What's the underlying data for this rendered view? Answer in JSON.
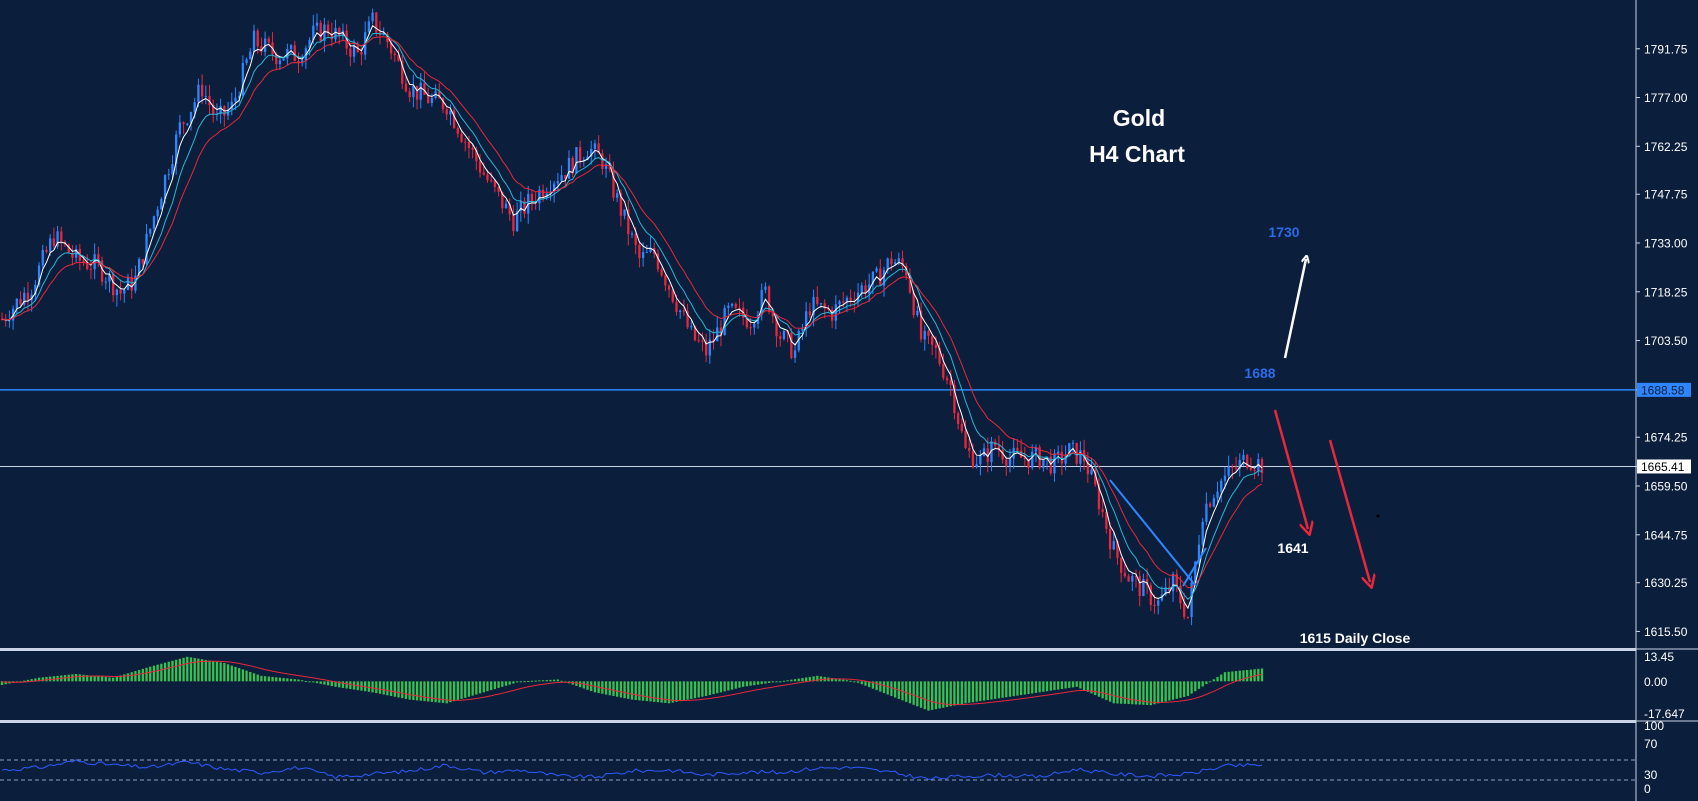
{
  "chart_data": [
    {
      "type": "candlestick",
      "title": "Gold",
      "subtitle": "H4 Chart",
      "y_ticks": [
        1791.75,
        1777.0,
        1762.25,
        1747.75,
        1733.0,
        1718.25,
        1703.5,
        1688.58,
        1674.25,
        1665.41,
        1659.5,
        1644.75,
        1630.25,
        1615.5
      ],
      "y_tick_labels": [
        "1791.75",
        "1777.00",
        "1762.25",
        "1747.75",
        "1733.00",
        "1718.25",
        "1703.50",
        "1688.58",
        "1674.25",
        "1665.41",
        "1659.50",
        "1644.75",
        "1630.25",
        "1615.50"
      ],
      "ylim": [
        1610.5,
        1806.5
      ],
      "price_path": [
        [
          0,
          1710
        ],
        [
          8,
          1720
        ],
        [
          14,
          1735
        ],
        [
          20,
          1728
        ],
        [
          26,
          1726
        ],
        [
          32,
          1718
        ],
        [
          36,
          1722
        ],
        [
          42,
          1745
        ],
        [
          48,
          1768
        ],
        [
          54,
          1780
        ],
        [
          58,
          1770
        ],
        [
          62,
          1774
        ],
        [
          68,
          1794
        ],
        [
          74,
          1790
        ],
        [
          80,
          1790
        ],
        [
          84,
          1796
        ],
        [
          88,
          1798
        ],
        [
          92,
          1794
        ],
        [
          96,
          1790
        ],
        [
          100,
          1800
        ],
        [
          104,
          1794
        ],
        [
          110,
          1780
        ],
        [
          116,
          1776
        ],
        [
          120,
          1775
        ],
        [
          126,
          1762
        ],
        [
          132,
          1750
        ],
        [
          138,
          1740
        ],
        [
          142,
          1745
        ],
        [
          148,
          1752
        ],
        [
          152,
          1755
        ],
        [
          158,
          1762
        ],
        [
          162,
          1758
        ],
        [
          168,
          1740
        ],
        [
          172,
          1728
        ],
        [
          176,
          1730
        ],
        [
          182,
          1715
        ],
        [
          186,
          1705
        ],
        [
          190,
          1700
        ],
        [
          196,
          1712
        ],
        [
          202,
          1710
        ],
        [
          206,
          1718
        ],
        [
          210,
          1705
        ],
        [
          214,
          1700
        ],
        [
          218,
          1714
        ],
        [
          224,
          1712
        ],
        [
          230,
          1718
        ],
        [
          236,
          1722
        ],
        [
          240,
          1728
        ],
        [
          244,
          1725
        ],
        [
          248,
          1704
        ],
        [
          252,
          1700
        ],
        [
          256,
          1690
        ],
        [
          260,
          1670
        ],
        [
          264,
          1667
        ],
        [
          268,
          1672
        ],
        [
          272,
          1668
        ],
        [
          276,
          1668
        ],
        [
          280,
          1668
        ],
        [
          284,
          1666
        ],
        [
          288,
          1670
        ],
        [
          292,
          1668
        ],
        [
          296,
          1655
        ],
        [
          300,
          1640
        ],
        [
          304,
          1632
        ],
        [
          308,
          1628
        ],
        [
          312,
          1624
        ],
        [
          316,
          1630
        ],
        [
          320,
          1620
        ],
        [
          324,
          1652
        ],
        [
          328,
          1660
        ],
        [
          332,
          1664
        ],
        [
          336,
          1668
        ],
        [
          340,
          1666
        ]
      ],
      "horizontal_lines": [
        {
          "value": 1688.58,
          "label": "1688.58",
          "color": "#2e86ff"
        },
        {
          "value": 1665.41,
          "label": "1665.41",
          "color": "#c9d4e6"
        }
      ],
      "annotations": [
        {
          "text": "1730",
          "color": "#2e6be6",
          "kind": "target-up"
        },
        {
          "text": "1688",
          "color": "#2e6be6",
          "kind": "resistance"
        },
        {
          "text": "1641",
          "color": "#ffffff",
          "kind": "target-down"
        },
        {
          "text": "1615 Daily Close",
          "color": "#ffffff",
          "kind": "support"
        }
      ],
      "colors": {
        "background": "#0b1e3c",
        "bull": "#2e86ff",
        "bear": "#e8283a",
        "ma_fast": "#ffffff",
        "ma_mid": "#29b6d6",
        "ma_slow": "#e8283a"
      }
    },
    {
      "type": "histogram",
      "name": "MACD",
      "y_tick_labels": [
        "13.45",
        "0.00",
        "-17.647"
      ],
      "ylim": [
        -20,
        16
      ],
      "values_path": [
        [
          0,
          -2
        ],
        [
          10,
          2
        ],
        [
          20,
          4
        ],
        [
          30,
          2
        ],
        [
          40,
          8
        ],
        [
          50,
          13.4
        ],
        [
          60,
          10
        ],
        [
          70,
          3
        ],
        [
          80,
          1
        ],
        [
          90,
          -3
        ],
        [
          100,
          -6
        ],
        [
          110,
          -10
        ],
        [
          120,
          -12
        ],
        [
          130,
          -6
        ],
        [
          140,
          0
        ],
        [
          150,
          1
        ],
        [
          160,
          -6
        ],
        [
          170,
          -10
        ],
        [
          180,
          -12
        ],
        [
          190,
          -8
        ],
        [
          200,
          -3
        ],
        [
          210,
          0
        ],
        [
          220,
          3
        ],
        [
          230,
          0
        ],
        [
          240,
          -8
        ],
        [
          250,
          -16
        ],
        [
          260,
          -12
        ],
        [
          270,
          -9
        ],
        [
          280,
          -6
        ],
        [
          290,
          -3
        ],
        [
          300,
          -12
        ],
        [
          310,
          -13
        ],
        [
          320,
          -8
        ],
        [
          330,
          5
        ],
        [
          340,
          7
        ]
      ],
      "colors": {
        "bars": "#36c24f",
        "signal": "#e8283a"
      }
    },
    {
      "type": "line",
      "name": "RSI",
      "y_tick_labels": [
        "100",
        "70",
        "30",
        "0"
      ],
      "ylim": [
        0,
        100
      ],
      "levels": [
        70,
        30
      ],
      "values_path": [
        [
          0,
          50
        ],
        [
          10,
          55
        ],
        [
          20,
          68
        ],
        [
          30,
          60
        ],
        [
          40,
          55
        ],
        [
          50,
          66
        ],
        [
          60,
          52
        ],
        [
          70,
          45
        ],
        [
          80,
          55
        ],
        [
          90,
          36
        ],
        [
          100,
          42
        ],
        [
          110,
          48
        ],
        [
          120,
          60
        ],
        [
          130,
          45
        ],
        [
          140,
          50
        ],
        [
          150,
          38
        ],
        [
          160,
          36
        ],
        [
          170,
          48
        ],
        [
          180,
          50
        ],
        [
          190,
          40
        ],
        [
          200,
          46
        ],
        [
          210,
          45
        ],
        [
          220,
          54
        ],
        [
          230,
          55
        ],
        [
          240,
          45
        ],
        [
          250,
          32
        ],
        [
          260,
          38
        ],
        [
          270,
          40
        ],
        [
          280,
          36
        ],
        [
          290,
          52
        ],
        [
          300,
          42
        ],
        [
          310,
          38
        ],
        [
          320,
          42
        ],
        [
          330,
          58
        ],
        [
          340,
          60
        ]
      ],
      "colors": {
        "line": "#2e5bff",
        "levels": "#8fa3c7"
      }
    }
  ]
}
